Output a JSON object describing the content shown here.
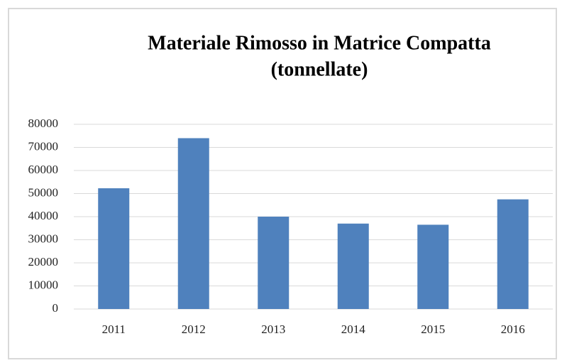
{
  "chart_data": {
    "type": "bar",
    "title": "Materiale Rimosso in Matrice Compatta",
    "subtitle": "(tonnellate)",
    "categories": [
      "2011",
      "2012",
      "2013",
      "2014",
      "2015",
      "2016"
    ],
    "values": [
      52300,
      74000,
      40000,
      37000,
      36500,
      47500
    ],
    "color": "#4f81bd",
    "ylim": [
      0,
      80000
    ],
    "yticks": [
      0,
      10000,
      20000,
      30000,
      40000,
      50000,
      60000,
      70000,
      80000
    ],
    "grid": true
  }
}
